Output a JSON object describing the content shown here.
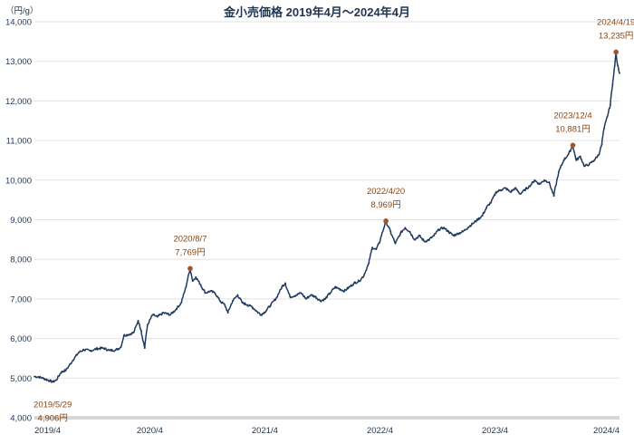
{
  "chart_data": {
    "type": "line",
    "title": "金小売価格 2019年4月～2024年4月",
    "unit_label": "（円/g）",
    "xlabel": "",
    "ylabel": "",
    "ylim": [
      4000,
      14000
    ],
    "yticks": [
      "4,000",
      "5,000",
      "6,000",
      "7,000",
      "8,000",
      "9,000",
      "10,000",
      "11,000",
      "12,000",
      "13,000",
      "14,000"
    ],
    "xlim": [
      "2019-04-01",
      "2024-04-30"
    ],
    "xticks": [
      {
        "date": "2019-04-01",
        "label": "2019/4"
      },
      {
        "date": "2020-04-01",
        "label": "2020/4"
      },
      {
        "date": "2021-04-01",
        "label": "2021/4"
      },
      {
        "date": "2022-04-01",
        "label": "2022/4"
      },
      {
        "date": "2023-04-01",
        "label": "2023/4"
      },
      {
        "date": "2024-04-01",
        "label": "2024/4"
      }
    ],
    "grid": true,
    "series_color": "#1f3a5f",
    "marker_color": "#a0522d",
    "annotation_color": "#8b4513",
    "series": [
      {
        "points": [
          [
            "2019-04-01",
            5040
          ],
          [
            "2019-04-15",
            5030
          ],
          [
            "2019-05-01",
            4990
          ],
          [
            "2019-05-29",
            4906
          ],
          [
            "2019-06-10",
            4950
          ],
          [
            "2019-06-25",
            5150
          ],
          [
            "2019-07-10",
            5200
          ],
          [
            "2019-08-01",
            5450
          ],
          [
            "2019-08-20",
            5650
          ],
          [
            "2019-09-05",
            5720
          ],
          [
            "2019-09-25",
            5690
          ],
          [
            "2019-10-15",
            5740
          ],
          [
            "2019-11-05",
            5760
          ],
          [
            "2019-11-25",
            5700
          ],
          [
            "2019-12-15",
            5710
          ],
          [
            "2019-12-31",
            5780
          ],
          [
            "2020-01-10",
            6080
          ],
          [
            "2020-01-25",
            6100
          ],
          [
            "2020-02-10",
            6150
          ],
          [
            "2020-02-24",
            6450
          ],
          [
            "2020-03-05",
            6200
          ],
          [
            "2020-03-16",
            5760
          ],
          [
            "2020-03-25",
            6350
          ],
          [
            "2020-04-10",
            6600
          ],
          [
            "2020-04-25",
            6550
          ],
          [
            "2020-05-15",
            6650
          ],
          [
            "2020-06-05",
            6600
          ],
          [
            "2020-06-25",
            6750
          ],
          [
            "2020-07-10",
            6900
          ],
          [
            "2020-07-25",
            7300
          ],
          [
            "2020-08-07",
            7769
          ],
          [
            "2020-08-15",
            7450
          ],
          [
            "2020-08-25",
            7550
          ],
          [
            "2020-09-10",
            7350
          ],
          [
            "2020-09-25",
            7150
          ],
          [
            "2020-10-10",
            7200
          ],
          [
            "2020-10-25",
            7150
          ],
          [
            "2020-11-10",
            6950
          ],
          [
            "2020-11-25",
            6850
          ],
          [
            "2020-12-05",
            6650
          ],
          [
            "2020-12-20",
            6950
          ],
          [
            "2021-01-05",
            7100
          ],
          [
            "2021-01-20",
            6900
          ],
          [
            "2021-02-05",
            6850
          ],
          [
            "2021-02-20",
            6800
          ],
          [
            "2021-03-05",
            6700
          ],
          [
            "2021-03-20",
            6600
          ],
          [
            "2021-04-05",
            6700
          ],
          [
            "2021-04-20",
            6850
          ],
          [
            "2021-05-10",
            7050
          ],
          [
            "2021-05-25",
            7300
          ],
          [
            "2021-06-05",
            7400
          ],
          [
            "2021-06-20",
            7050
          ],
          [
            "2021-07-10",
            7100
          ],
          [
            "2021-07-25",
            7150
          ],
          [
            "2021-08-10",
            7000
          ],
          [
            "2021-08-25",
            7100
          ],
          [
            "2021-09-10",
            7050
          ],
          [
            "2021-09-25",
            6950
          ],
          [
            "2021-10-10",
            7000
          ],
          [
            "2021-10-25",
            7150
          ],
          [
            "2021-11-10",
            7300
          ],
          [
            "2021-11-25",
            7250
          ],
          [
            "2021-12-10",
            7200
          ],
          [
            "2021-12-25",
            7300
          ],
          [
            "2022-01-10",
            7400
          ],
          [
            "2022-01-25",
            7450
          ],
          [
            "2022-02-10",
            7600
          ],
          [
            "2022-02-25",
            7900
          ],
          [
            "2022-03-08",
            8300
          ],
          [
            "2022-03-20",
            8250
          ],
          [
            "2022-04-01",
            8450
          ],
          [
            "2022-04-20",
            8969
          ],
          [
            "2022-05-05",
            8700
          ],
          [
            "2022-05-20",
            8400
          ],
          [
            "2022-06-05",
            8650
          ],
          [
            "2022-06-20",
            8800
          ],
          [
            "2022-07-05",
            8700
          ],
          [
            "2022-07-20",
            8500
          ],
          [
            "2022-08-05",
            8600
          ],
          [
            "2022-08-20",
            8450
          ],
          [
            "2022-09-05",
            8500
          ],
          [
            "2022-09-20",
            8600
          ],
          [
            "2022-10-05",
            8750
          ],
          [
            "2022-10-20",
            8800
          ],
          [
            "2022-11-05",
            8700
          ],
          [
            "2022-11-20",
            8600
          ],
          [
            "2022-12-05",
            8650
          ],
          [
            "2022-12-20",
            8700
          ],
          [
            "2023-01-05",
            8800
          ],
          [
            "2023-01-20",
            8900
          ],
          [
            "2023-02-05",
            9000
          ],
          [
            "2023-02-20",
            9100
          ],
          [
            "2023-03-05",
            9300
          ],
          [
            "2023-03-20",
            9450
          ],
          [
            "2023-04-05",
            9700
          ],
          [
            "2023-04-20",
            9750
          ],
          [
            "2023-05-05",
            9800
          ],
          [
            "2023-05-20",
            9700
          ],
          [
            "2023-06-05",
            9800
          ],
          [
            "2023-06-20",
            9650
          ],
          [
            "2023-07-05",
            9750
          ],
          [
            "2023-07-20",
            9850
          ],
          [
            "2023-08-05",
            10000
          ],
          [
            "2023-08-20",
            9900
          ],
          [
            "2023-09-05",
            10000
          ],
          [
            "2023-09-20",
            9950
          ],
          [
            "2023-10-05",
            9600
          ],
          [
            "2023-10-20",
            10200
          ],
          [
            "2023-11-05",
            10500
          ],
          [
            "2023-11-20",
            10650
          ],
          [
            "2023-12-04",
            10881
          ],
          [
            "2023-12-15",
            10500
          ],
          [
            "2023-12-28",
            10600
          ],
          [
            "2024-01-10",
            10350
          ],
          [
            "2024-01-25",
            10400
          ],
          [
            "2024-02-10",
            10500
          ],
          [
            "2024-02-25",
            10650
          ],
          [
            "2024-03-05",
            10900
          ],
          [
            "2024-03-12",
            11300
          ],
          [
            "2024-03-22",
            11600
          ],
          [
            "2024-04-01",
            11900
          ],
          [
            "2024-04-08",
            12400
          ],
          [
            "2024-04-15",
            12900
          ],
          [
            "2024-04-19",
            13235
          ],
          [
            "2024-04-24",
            12900
          ],
          [
            "2024-04-30",
            12700
          ]
        ]
      }
    ],
    "annotations": [
      {
        "date": "2019-05-29",
        "value": 4906,
        "date_label": "2019/5/29",
        "value_label": "4,906円",
        "position": "below"
      },
      {
        "date": "2020-08-07",
        "value": 7769,
        "date_label": "2020/8/7",
        "value_label": "7,769円",
        "position": "above"
      },
      {
        "date": "2022-04-20",
        "value": 8969,
        "date_label": "2022/4/20",
        "value_label": "8,969円",
        "position": "above"
      },
      {
        "date": "2023-12-04",
        "value": 10881,
        "date_label": "2023/12/4",
        "value_label": "10,881円",
        "position": "above"
      },
      {
        "date": "2024-04-19",
        "value": 13235,
        "date_label": "2024/4/19",
        "value_label": "13,235円",
        "position": "above"
      }
    ]
  }
}
